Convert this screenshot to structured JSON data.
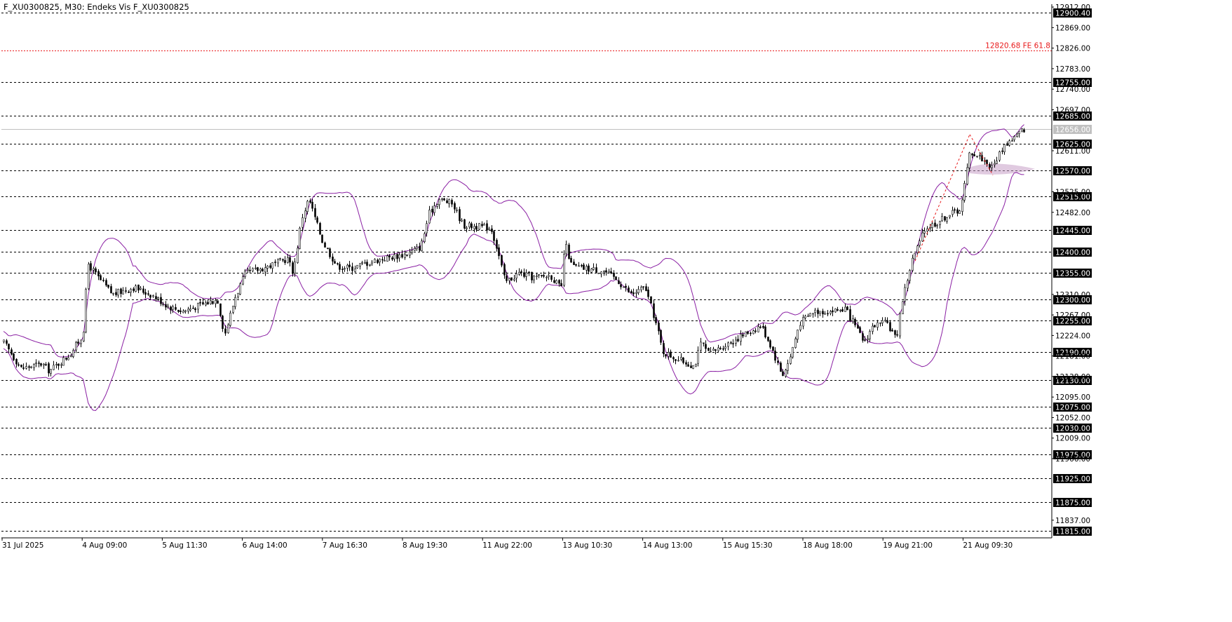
{
  "header": {
    "title": "F_XU0300825, M30:  Endeks Vis F_XU0300825"
  },
  "colors": {
    "background": "#ffffff",
    "candle": "#000000",
    "bollinger": "#8a1fa3",
    "support_resistance": "#000000",
    "fib_line": "#e8191a",
    "current_price_line": "#c0c0c0",
    "zone": "#c79fc7"
  },
  "chart_data": {
    "type": "candlestick",
    "symbol": "F_XU0300825",
    "timeframe": "M30",
    "ylim": [
      11800,
      12918
    ],
    "y_tick_labels": [
      "12912.00",
      "12869.00",
      "12826.00",
      "12783.00",
      "12740.00",
      "12697.00",
      "12611.00",
      "12525.00",
      "12482.00",
      "12310.00",
      "12267.00",
      "12224.00",
      "12181.00",
      "12138.00",
      "12095.00",
      "12052.00",
      "12009.00",
      "11966.00",
      "11837.00"
    ],
    "x_tick_labels": [
      "31 Jul 2025",
      "4 Aug 09:00",
      "5 Aug 11:30",
      "6 Aug 14:00",
      "7 Aug 16:30",
      "8 Aug 19:30",
      "11 Aug 22:00",
      "13 Aug 10:30",
      "14 Aug 13:00",
      "15 Aug 15:30",
      "18 Aug 18:00",
      "19 Aug 21:00",
      "21 Aug 09:30"
    ],
    "horizontal_levels": [
      "12900.40",
      "12755.00",
      "12685.00",
      "12625.00",
      "12570.00",
      "12515.00",
      "12445.00",
      "12400.00",
      "12355.00",
      "12300.00",
      "12255.00",
      "12190.00",
      "12130.00",
      "12075.00",
      "12030.00",
      "11975.00",
      "11925.00",
      "11875.00",
      "11815.00"
    ],
    "current_price": "12656.00",
    "fib_expansion": {
      "value": "12820.68",
      "label": "12820.68 FE 61.8"
    },
    "series": [
      {
        "type": "close_path",
        "anchors": [
          [
            0,
            12220
          ],
          [
            30,
            12155
          ],
          [
            60,
            12165
          ],
          [
            70,
            12150
          ],
          [
            100,
            12185
          ],
          [
            118,
            12225
          ],
          [
            125,
            12375
          ],
          [
            140,
            12345
          ],
          [
            160,
            12310
          ],
          [
            190,
            12325
          ],
          [
            215,
            12310
          ],
          [
            240,
            12285
          ],
          [
            260,
            12275
          ],
          [
            290,
            12290
          ],
          [
            310,
            12300
          ],
          [
            320,
            12225
          ],
          [
            335,
            12305
          ],
          [
            350,
            12355
          ],
          [
            375,
            12365
          ],
          [
            410,
            12385
          ],
          [
            418,
            12355
          ],
          [
            430,
            12470
          ],
          [
            440,
            12510
          ],
          [
            460,
            12420
          ],
          [
            480,
            12370
          ],
          [
            500,
            12365
          ],
          [
            520,
            12375
          ],
          [
            545,
            12385
          ],
          [
            580,
            12395
          ],
          [
            600,
            12410
          ],
          [
            612,
            12480
          ],
          [
            625,
            12510
          ],
          [
            645,
            12500
          ],
          [
            660,
            12455
          ],
          [
            700,
            12450
          ],
          [
            710,
            12400
          ],
          [
            720,
            12335
          ],
          [
            740,
            12355
          ],
          [
            760,
            12345
          ],
          [
            785,
            12350
          ],
          [
            800,
            12320
          ],
          [
            805,
            12420
          ],
          [
            815,
            12370
          ],
          [
            830,
            12365
          ],
          [
            860,
            12360
          ],
          [
            880,
            12340
          ],
          [
            900,
            12310
          ],
          [
            920,
            12325
          ],
          [
            935,
            12250
          ],
          [
            945,
            12190
          ],
          [
            965,
            12175
          ],
          [
            990,
            12160
          ],
          [
            1000,
            12210
          ],
          [
            1010,
            12185
          ],
          [
            1035,
            12205
          ],
          [
            1060,
            12225
          ],
          [
            1085,
            12245
          ],
          [
            1100,
            12200
          ],
          [
            1115,
            12140
          ],
          [
            1125,
            12170
          ],
          [
            1140,
            12250
          ],
          [
            1160,
            12275
          ],
          [
            1185,
            12275
          ],
          [
            1205,
            12280
          ],
          [
            1220,
            12240
          ],
          [
            1232,
            12210
          ],
          [
            1245,
            12245
          ],
          [
            1265,
            12250
          ],
          [
            1278,
            12215
          ],
          [
            1285,
            12290
          ],
          [
            1300,
            12380
          ],
          [
            1320,
            12450
          ],
          [
            1335,
            12460
          ],
          [
            1350,
            12475
          ],
          [
            1370,
            12490
          ],
          [
            1383,
            12610
          ],
          [
            1400,
            12595
          ],
          [
            1415,
            12575
          ],
          [
            1430,
            12620
          ],
          [
            1460,
            12656
          ]
        ]
      }
    ]
  }
}
